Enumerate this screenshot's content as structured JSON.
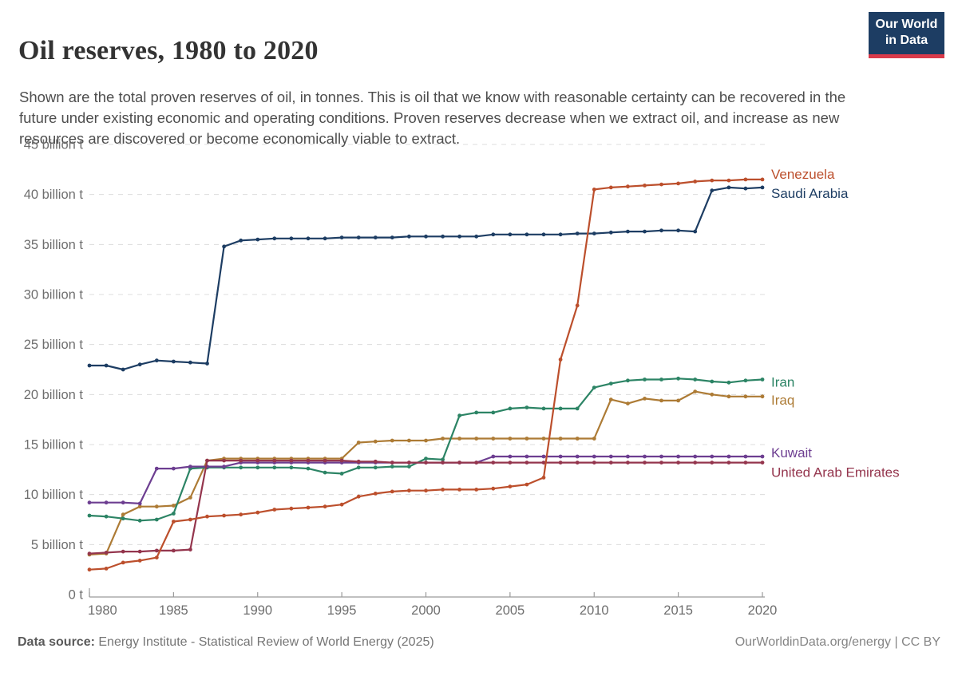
{
  "header": {
    "title": "Oil reserves, 1980 to 2020",
    "subtitle": "Shown are the total proven reserves of oil, in tonnes. This is oil that we know with reasonable certainty can be recovered in the future under existing economic and operating conditions. Proven reserves decrease when we extract oil, and increase as new resources are discovered or become economically viable to extract.",
    "logo": {
      "line1": "Our World",
      "line2": "in Data",
      "bg_color": "#1d3d63",
      "bar_color": "#d93a4a"
    }
  },
  "footer": {
    "source_label": "Data source:",
    "source_text": " Energy Institute - Statistical Review of World Energy (2025)",
    "credit": "OurWorldinData.org/energy | CC BY"
  },
  "chart_data": {
    "type": "line",
    "unit": "billion tonnes",
    "x": [
      1980,
      1981,
      1982,
      1983,
      1984,
      1985,
      1986,
      1987,
      1988,
      1989,
      1990,
      1991,
      1992,
      1993,
      1994,
      1995,
      1996,
      1997,
      1998,
      1999,
      2000,
      2001,
      2002,
      2003,
      2004,
      2005,
      2006,
      2007,
      2008,
      2009,
      2010,
      2011,
      2012,
      2013,
      2014,
      2015,
      2016,
      2017,
      2018,
      2019,
      2020
    ],
    "xlim": [
      1980,
      2020
    ],
    "ylim": [
      0,
      45
    ],
    "grid": "horizontal-dashed",
    "legend_position": "labels-at-line-ends-right",
    "xticks": [
      1980,
      1985,
      1990,
      1995,
      2000,
      2005,
      2010,
      2015,
      2020
    ],
    "yticks": {
      "values": [
        0,
        5,
        10,
        15,
        20,
        25,
        30,
        35,
        40,
        45
      ],
      "labels": [
        "0 t",
        "5 billion t",
        "10 billion t",
        "15 billion t",
        "20 billion t",
        "25 billion t",
        "30 billion t",
        "35 billion t",
        "40 billion t",
        "45 billion t"
      ]
    },
    "series": [
      {
        "name": "Venezuela",
        "color": "#bc4f2c",
        "values": [
          2.5,
          2.6,
          3.2,
          3.4,
          3.7,
          7.3,
          7.5,
          7.8,
          7.9,
          8.0,
          8.2,
          8.5,
          8.6,
          8.7,
          8.8,
          9.0,
          9.8,
          10.1,
          10.3,
          10.4,
          10.4,
          10.5,
          10.5,
          10.5,
          10.6,
          10.8,
          11.0,
          11.7,
          23.5,
          28.9,
          40.5,
          40.7,
          40.8,
          40.9,
          41.0,
          41.1,
          41.3,
          41.4,
          41.4,
          41.5,
          41.5
        ]
      },
      {
        "name": "Saudi Arabia",
        "color": "#1d3d63",
        "values": [
          22.9,
          22.9,
          22.5,
          23.0,
          23.4,
          23.3,
          23.2,
          23.1,
          34.8,
          35.4,
          35.5,
          35.6,
          35.6,
          35.6,
          35.6,
          35.7,
          35.7,
          35.7,
          35.7,
          35.8,
          35.8,
          35.8,
          35.8,
          35.8,
          36.0,
          36.0,
          36.0,
          36.0,
          36.0,
          36.1,
          36.1,
          36.2,
          36.3,
          36.3,
          36.4,
          36.4,
          36.3,
          40.4,
          40.7,
          40.6,
          40.7
        ]
      },
      {
        "name": "Iran",
        "color": "#2c8465",
        "values": [
          7.9,
          7.8,
          7.6,
          7.4,
          7.5,
          8.1,
          12.6,
          12.7,
          12.7,
          12.7,
          12.7,
          12.7,
          12.7,
          12.6,
          12.2,
          12.1,
          12.7,
          12.7,
          12.8,
          12.8,
          13.6,
          13.5,
          17.9,
          18.2,
          18.2,
          18.6,
          18.7,
          18.6,
          18.6,
          18.6,
          20.7,
          21.1,
          21.4,
          21.5,
          21.5,
          21.6,
          21.5,
          21.3,
          21.2,
          21.4,
          21.5
        ]
      },
      {
        "name": "Iraq",
        "color": "#ad7b35",
        "values": [
          4.0,
          4.1,
          8.0,
          8.8,
          8.8,
          8.9,
          9.7,
          13.4,
          13.6,
          13.6,
          13.6,
          13.6,
          13.6,
          13.6,
          13.6,
          13.6,
          15.2,
          15.3,
          15.4,
          15.4,
          15.4,
          15.6,
          15.6,
          15.6,
          15.6,
          15.6,
          15.6,
          15.6,
          15.6,
          15.6,
          15.6,
          19.5,
          19.1,
          19.6,
          19.4,
          19.4,
          20.3,
          20.0,
          19.8,
          19.8,
          19.8
        ]
      },
      {
        "name": "Kuwait",
        "color": "#6d3e91",
        "values": [
          9.2,
          9.2,
          9.2,
          9.1,
          12.6,
          12.6,
          12.8,
          12.8,
          12.8,
          13.2,
          13.2,
          13.2,
          13.2,
          13.2,
          13.2,
          13.2,
          13.2,
          13.2,
          13.2,
          13.2,
          13.2,
          13.2,
          13.2,
          13.2,
          13.8,
          13.8,
          13.8,
          13.8,
          13.8,
          13.8,
          13.8,
          13.8,
          13.8,
          13.8,
          13.8,
          13.8,
          13.8,
          13.8,
          13.8,
          13.8,
          13.8
        ]
      },
      {
        "name": "United Arab Emirates",
        "color": "#94354d",
        "values": [
          4.1,
          4.2,
          4.3,
          4.3,
          4.4,
          4.4,
          4.5,
          13.4,
          13.4,
          13.4,
          13.4,
          13.4,
          13.4,
          13.4,
          13.4,
          13.4,
          13.3,
          13.3,
          13.2,
          13.2,
          13.2,
          13.2,
          13.2,
          13.2,
          13.2,
          13.2,
          13.2,
          13.2,
          13.2,
          13.2,
          13.2,
          13.2,
          13.2,
          13.2,
          13.2,
          13.2,
          13.2,
          13.2,
          13.2,
          13.2,
          13.2
        ]
      }
    ]
  }
}
